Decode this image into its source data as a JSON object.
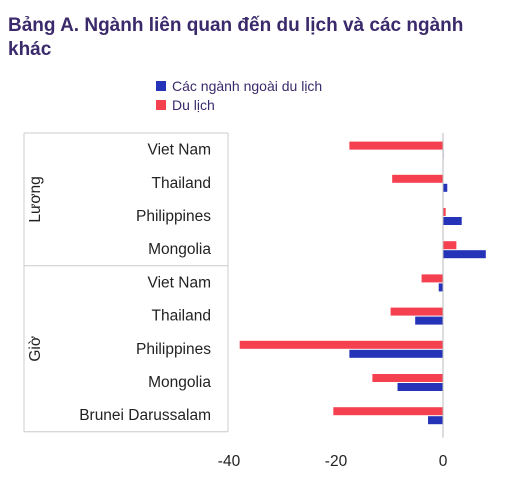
{
  "chart_data": {
    "type": "bar",
    "orientation": "horizontal",
    "title": "Bảng A. Ngành liên quan đến du lịch và các ngành khác",
    "groups": [
      {
        "label": "Lương",
        "categories": [
          "Viet Nam",
          "Thailand",
          "Philippines",
          "Mongolia"
        ]
      },
      {
        "label": "Giờ",
        "categories": [
          "Viet Nam",
          "Thailand",
          "Philippines",
          "Mongolia",
          "Brunei Darussalam"
        ]
      }
    ],
    "series": [
      {
        "name": "Các ngành ngoài du lịch",
        "color": "#2533b8",
        "values": [
          [
            0,
            0.8,
            3.5,
            8.0
          ],
          [
            -0.8,
            -5.2,
            -17.5,
            -8.5,
            -2.8
          ]
        ]
      },
      {
        "name": "Du lịch",
        "color": "#f5414f",
        "values": [
          [
            -17.5,
            -9.5,
            0.5,
            2.5
          ],
          [
            -4.0,
            -9.8,
            -38.0,
            -13.2,
            -20.5
          ]
        ]
      }
    ],
    "xticks": [
      -40,
      -20,
      0
    ],
    "xlim": [
      -40,
      8.5
    ],
    "legend_position": "top",
    "grid": false
  }
}
